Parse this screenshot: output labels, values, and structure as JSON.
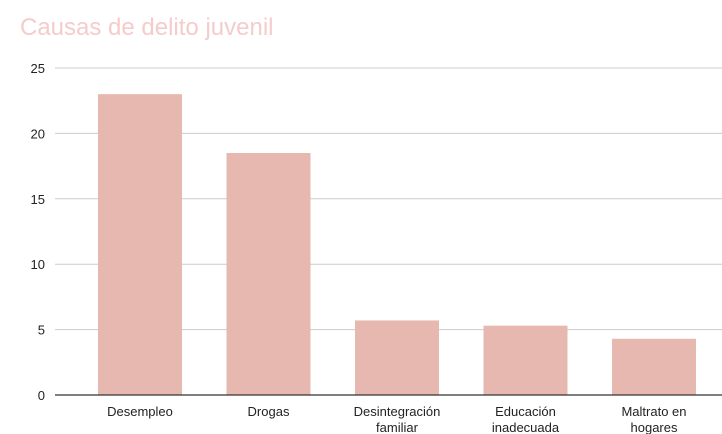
{
  "chart_data": {
    "type": "bar",
    "title": "Causas de delito juvenil",
    "xlabel": "",
    "ylabel": "",
    "categories": [
      [
        "Desempleo"
      ],
      [
        "Drogas"
      ],
      [
        "Desintegración",
        "familiar"
      ],
      [
        "Educación",
        "inadecuada"
      ],
      [
        "Maltrato en",
        "hogares"
      ]
    ],
    "values": [
      23,
      18.5,
      5.7,
      5.3,
      4.3
    ],
    "ylim": [
      0,
      25
    ],
    "yticks": [
      0,
      5,
      10,
      15,
      20,
      25
    ],
    "grid": true,
    "legend": "none",
    "colors": {
      "bar": "#e6b8af",
      "title": "#f4cccc",
      "grid": "#cccccc",
      "axis": "#333333"
    }
  }
}
